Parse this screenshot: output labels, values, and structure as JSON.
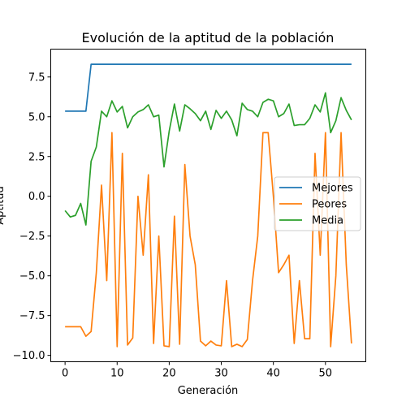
{
  "chart_data": {
    "type": "line",
    "title": "Evolución de la aptitud de la población",
    "xlabel": "Generación",
    "ylabel": "Aptitud",
    "xlim": [
      -2.75,
      57.75
    ],
    "ylim": [
      -10.4,
      9.25
    ],
    "xticks": [
      0,
      10,
      20,
      30,
      40,
      50
    ],
    "yticks": [
      -10.0,
      -7.5,
      -5.0,
      -2.5,
      0.0,
      2.5,
      5.0,
      7.5
    ],
    "xtick_labels": [
      "0",
      "10",
      "20",
      "30",
      "40",
      "50"
    ],
    "ytick_labels": [
      "−10.0",
      "−7.5",
      "−5.0",
      "−2.5",
      "0.0",
      "2.5",
      "5.0",
      "7.5"
    ],
    "grid": false,
    "legend_position": "center-right",
    "x": [
      0,
      1,
      2,
      3,
      4,
      5,
      6,
      7,
      8,
      9,
      10,
      11,
      12,
      13,
      14,
      15,
      16,
      17,
      18,
      19,
      20,
      21,
      22,
      23,
      24,
      25,
      26,
      27,
      28,
      29,
      30,
      31,
      32,
      33,
      34,
      35,
      36,
      37,
      38,
      39,
      40,
      41,
      42,
      43,
      44,
      45,
      46,
      47,
      48,
      49,
      50,
      51,
      52,
      53,
      54,
      55
    ],
    "series": [
      {
        "name": "Mejores",
        "color": "#1f77b4",
        "values": [
          5.35,
          5.35,
          5.35,
          5.35,
          5.35,
          8.3,
          8.3,
          8.3,
          8.3,
          8.3,
          8.3,
          8.3,
          8.3,
          8.3,
          8.3,
          8.3,
          8.3,
          8.3,
          8.3,
          8.3,
          8.3,
          8.3,
          8.3,
          8.3,
          8.3,
          8.3,
          8.3,
          8.3,
          8.3,
          8.3,
          8.3,
          8.3,
          8.3,
          8.3,
          8.3,
          8.3,
          8.3,
          8.3,
          8.3,
          8.3,
          8.3,
          8.3,
          8.3,
          8.3,
          8.3,
          8.3,
          8.3,
          8.3,
          8.3,
          8.3,
          8.3,
          8.3,
          8.3,
          8.3,
          8.3,
          8.3
        ]
      },
      {
        "name": "Peores",
        "color": "#ff7f0e",
        "values": [
          -8.2,
          -8.2,
          -8.2,
          -8.2,
          -8.8,
          -8.5,
          -4.8,
          0.7,
          -5.3,
          4.0,
          -9.45,
          2.7,
          -9.35,
          -8.9,
          0.0,
          -3.7,
          1.35,
          -9.25,
          -2.5,
          -9.4,
          -9.45,
          -1.25,
          -9.3,
          2.0,
          -2.5,
          -4.3,
          -9.1,
          -9.4,
          -9.1,
          -9.35,
          -9.4,
          -5.3,
          -9.45,
          -9.3,
          -9.45,
          -9.0,
          -5.3,
          -2.5,
          4.0,
          4.0,
          0.0,
          -4.8,
          -4.3,
          -3.7,
          -9.25,
          -5.3,
          -8.95,
          -8.95,
          2.7,
          -3.7,
          4.0,
          -9.45,
          -5.0,
          4.0,
          -4.3,
          -9.25
        ]
      },
      {
        "name": "Media",
        "color": "#2ca02c",
        "values": [
          -0.9,
          -1.3,
          -1.2,
          -0.45,
          -1.8,
          2.2,
          3.1,
          5.35,
          5.0,
          6.0,
          5.3,
          5.65,
          4.3,
          5.0,
          5.3,
          5.45,
          5.75,
          5.0,
          5.1,
          1.85,
          4.1,
          5.8,
          4.1,
          5.75,
          5.5,
          5.2,
          4.75,
          5.35,
          4.2,
          5.4,
          4.9,
          5.35,
          4.8,
          3.8,
          5.85,
          5.45,
          5.35,
          5.0,
          5.9,
          6.1,
          6.0,
          5.0,
          5.2,
          5.8,
          4.45,
          4.5,
          4.5,
          4.9,
          5.75,
          5.3,
          6.5,
          4.0,
          4.75,
          6.2,
          5.4,
          4.8
        ]
      }
    ]
  }
}
